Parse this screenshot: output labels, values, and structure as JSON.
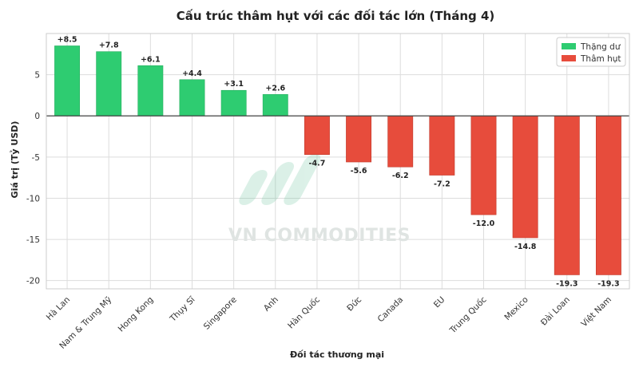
{
  "colors": {
    "surplus": "#2ecc71",
    "deficit": "#e74c3c",
    "grid": "#dddddd",
    "zero_line": "#444444"
  },
  "watermark": {
    "text": "VN COMMODITIES"
  },
  "legend": {
    "position": "top-right"
  },
  "chart_data": {
    "type": "bar",
    "title": "Cấu trúc thâm hụt với các đối tác lớn (Tháng 4)",
    "xlabel": "Đối tác thương mại",
    "ylabel": "Giá trị (Tỷ USD)",
    "ylim": [
      -21,
      10
    ],
    "yticks": [
      5,
      0,
      -5,
      -10,
      -15,
      -20
    ],
    "grid": true,
    "categories": [
      "Hà Lan",
      "Nam & Trung Mỹ",
      "Hong Kong",
      "Thụy Sĩ",
      "Singapore",
      "Anh",
      "Hàn Quốc",
      "Đức",
      "Canada",
      "EU",
      "Trung Quốc",
      "Mexico",
      "Đài Loan",
      "Việt Nam"
    ],
    "values": [
      8.5,
      7.8,
      6.1,
      4.4,
      3.1,
      2.6,
      -4.7,
      -5.6,
      -6.2,
      -7.2,
      -12.0,
      -14.8,
      -19.3,
      -19.3
    ],
    "data_labels": [
      "+8.5",
      "+7.8",
      "+6.1",
      "+4.4",
      "+3.1",
      "+2.6",
      "-4.7",
      "-5.6",
      "-6.2",
      "-7.2",
      "-12.0",
      "-14.8",
      "-19.3",
      "-19.3"
    ],
    "series": [
      {
        "name": "Thặng dư",
        "color": "#2ecc71"
      },
      {
        "name": "Thâm hụt",
        "color": "#e74c3c"
      }
    ]
  }
}
